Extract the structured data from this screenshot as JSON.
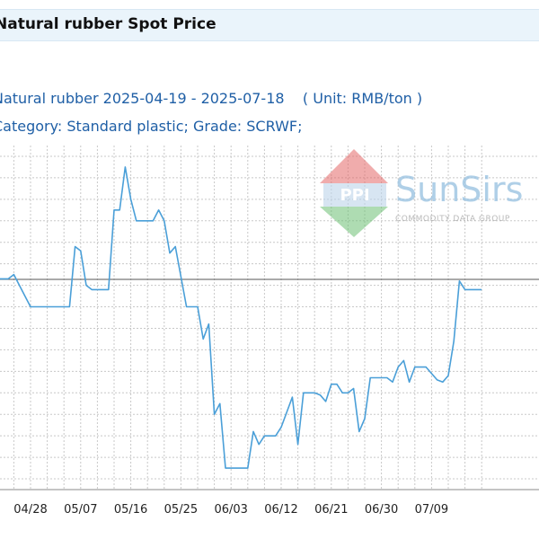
{
  "header": {
    "title": "Natural rubber Spot Price"
  },
  "chart_data": {
    "type": "line",
    "subtitle_line1": "Natural rubber 2025-04-19 - 2025-07-18    ( Unit: RMB/ton )",
    "subtitle_line2": "Category: Standard plastic; Grade: SCRWF;",
    "x_tick_labels": [
      "04/28",
      "05/07",
      "05/16",
      "05/25",
      "06/03",
      "06/12",
      "06/21",
      "06/30",
      "07/09"
    ],
    "watermark": {
      "brand": "SunSirs",
      "tagline": "COMMODITY DATA GROUP"
    },
    "series": [
      {
        "values": [
          [
            "2025-04-19",
            15330
          ],
          [
            "2025-04-22",
            15330
          ],
          [
            "2025-04-24",
            15330
          ],
          [
            "2025-04-25",
            15350
          ],
          [
            "2025-04-27",
            15250
          ],
          [
            "2025-04-28",
            15200
          ],
          [
            "2025-04-29",
            15200
          ],
          [
            "2025-05-01",
            15200
          ],
          [
            "2025-05-04",
            15200
          ],
          [
            "2025-05-05",
            15200
          ],
          [
            "2025-05-06",
            15480
          ],
          [
            "2025-05-07",
            15460
          ],
          [
            "2025-05-08",
            15300
          ],
          [
            "2025-05-09",
            15280
          ],
          [
            "2025-05-11",
            15280
          ],
          [
            "2025-05-12",
            15280
          ],
          [
            "2025-05-13",
            15650
          ],
          [
            "2025-05-14",
            15650
          ],
          [
            "2025-05-15",
            15850
          ],
          [
            "2025-05-16",
            15700
          ],
          [
            "2025-05-17",
            15600
          ],
          [
            "2025-05-19",
            15600
          ],
          [
            "2025-05-20",
            15600
          ],
          [
            "2025-05-21",
            15650
          ],
          [
            "2025-05-22",
            15600
          ],
          [
            "2025-05-23",
            15450
          ],
          [
            "2025-05-24",
            15480
          ],
          [
            "2025-05-26",
            15200
          ],
          [
            "2025-05-28",
            15200
          ],
          [
            "2025-05-29",
            15050
          ],
          [
            "2025-05-30",
            15120
          ],
          [
            "2025-05-31",
            14700
          ],
          [
            "2025-06-01",
            14750
          ],
          [
            "2025-06-02",
            14450
          ],
          [
            "2025-06-03",
            14450
          ],
          [
            "2025-06-04",
            14450
          ],
          [
            "2025-06-05",
            14450
          ],
          [
            "2025-06-06",
            14450
          ],
          [
            "2025-06-07",
            14620
          ],
          [
            "2025-06-08",
            14560
          ],
          [
            "2025-06-09",
            14600
          ],
          [
            "2025-06-10",
            14600
          ],
          [
            "2025-06-11",
            14600
          ],
          [
            "2025-06-12",
            14640
          ],
          [
            "2025-06-14",
            14780
          ],
          [
            "2025-06-15",
            14560
          ],
          [
            "2025-06-16",
            14800
          ],
          [
            "2025-06-18",
            14800
          ],
          [
            "2025-06-19",
            14790
          ],
          [
            "2025-06-20",
            14760
          ],
          [
            "2025-06-21",
            14840
          ],
          [
            "2025-06-22",
            14840
          ],
          [
            "2025-06-23",
            14800
          ],
          [
            "2025-06-24",
            14800
          ],
          [
            "2025-06-25",
            14820
          ],
          [
            "2025-06-26",
            14620
          ],
          [
            "2025-06-27",
            14680
          ],
          [
            "2025-06-28",
            14870
          ],
          [
            "2025-06-29",
            14870
          ],
          [
            "2025-07-01",
            14870
          ],
          [
            "2025-07-02",
            14850
          ],
          [
            "2025-07-03",
            14920
          ],
          [
            "2025-07-04",
            14950
          ],
          [
            "2025-07-05",
            14850
          ],
          [
            "2025-07-06",
            14920
          ],
          [
            "2025-07-07",
            14920
          ],
          [
            "2025-07-08",
            14920
          ],
          [
            "2025-07-10",
            14860
          ],
          [
            "2025-07-11",
            14850
          ],
          [
            "2025-07-12",
            14880
          ],
          [
            "2025-07-13",
            15040
          ],
          [
            "2025-07-14",
            15320
          ],
          [
            "2025-07-15",
            15280
          ],
          [
            "2025-07-16",
            15280
          ],
          [
            "2025-07-18",
            15280
          ]
        ]
      }
    ],
    "ylim": [
      14350,
      15950
    ],
    "grid": true,
    "colors": {
      "line": "#4a9fd8",
      "grid": "#c8c8c8",
      "axis": "#555555",
      "title_band": "#eaf4fb",
      "subtitle": "#1f5fa6"
    }
  }
}
